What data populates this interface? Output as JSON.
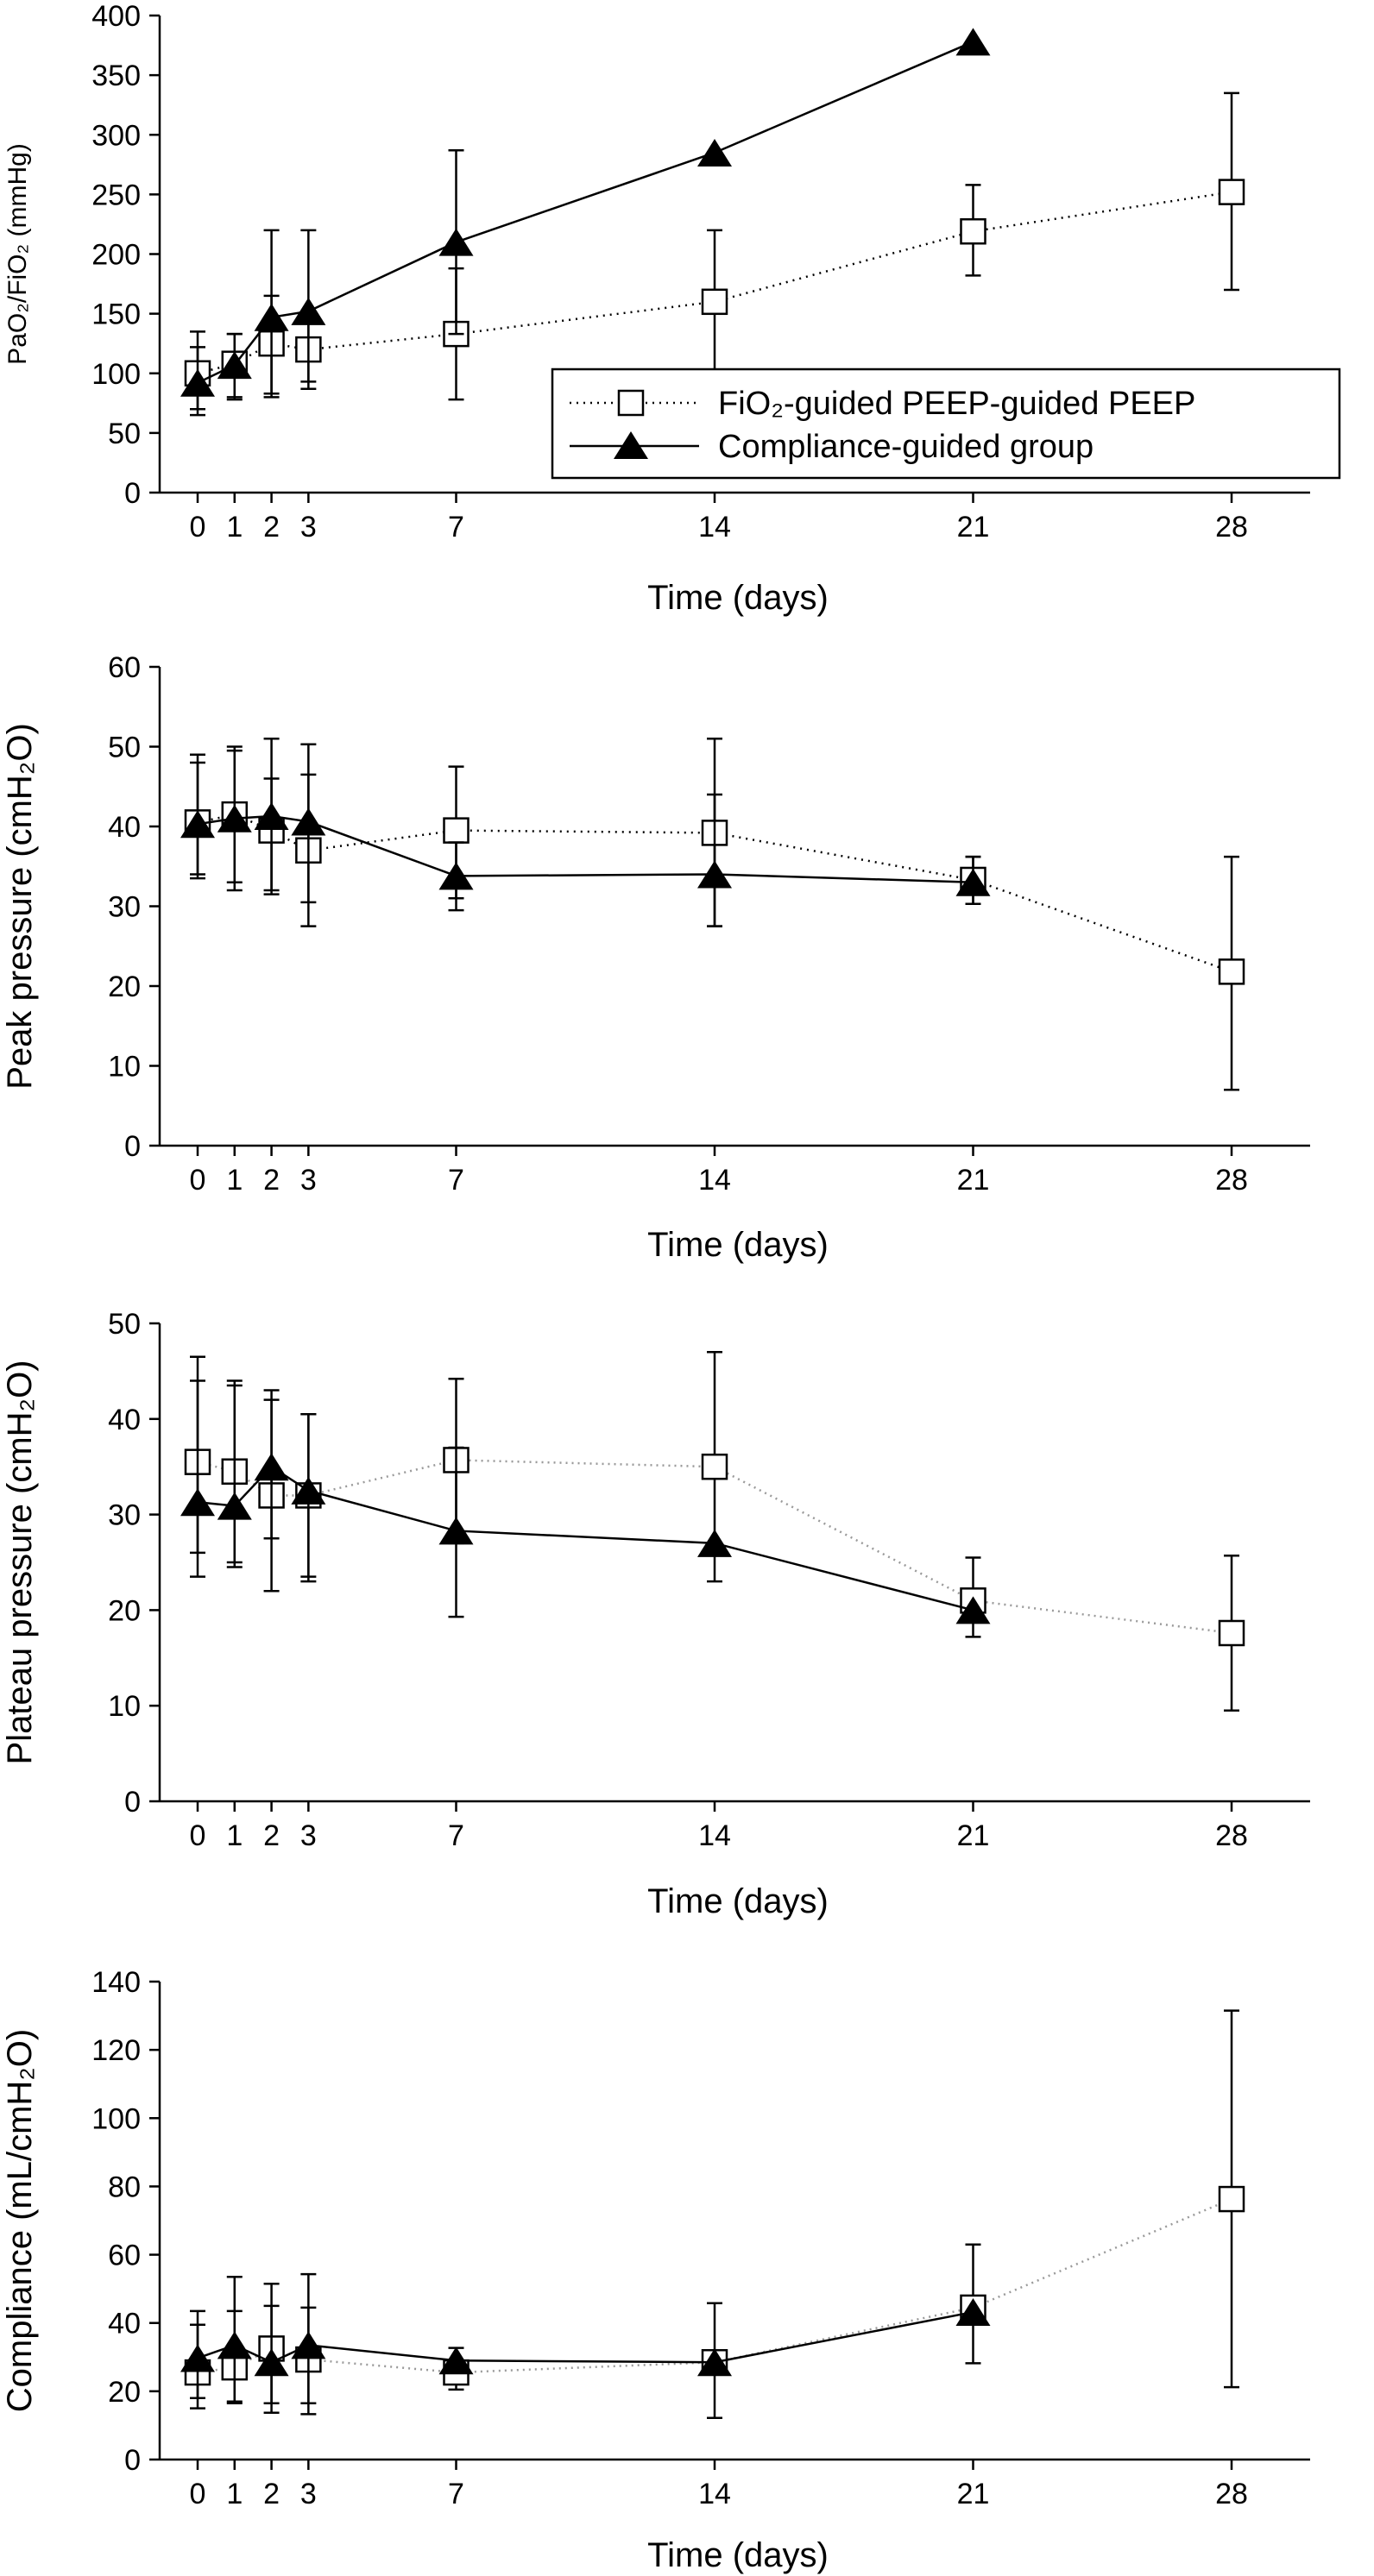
{
  "figure": {
    "legend": {
      "fio2_label": "FiO₂-guided PEEP-guided PEEP",
      "compliance_label": "Compliance-guided group"
    }
  },
  "colors": {
    "ink": "#000000",
    "open_marker": "#ffffff",
    "light_dotted": "#9a9a9a"
  },
  "chart_data": [
    {
      "type": "line",
      "ylabel": "PaO₂/FiO₂ (mmHg)",
      "xlabel": "Time (days)",
      "xticks": [
        0,
        1,
        2,
        3,
        7,
        14,
        21,
        28
      ],
      "xlim": [
        -1,
        30
      ],
      "ylim": [
        0,
        400
      ],
      "yticks": [
        0,
        50,
        100,
        150,
        200,
        250,
        300,
        350,
        400
      ],
      "grid": false,
      "legend": "bottom-right",
      "series": [
        {
          "name": "FiO₂-guided PEEP-guided PEEP",
          "marker": "open-square",
          "line": "dotted",
          "x": [
            0,
            1,
            2,
            3,
            7,
            14,
            21,
            28
          ],
          "y": [
            100,
            108,
            125,
            120,
            133,
            160,
            219,
            252
          ],
          "err_low": [
            70,
            80,
            83,
            93,
            78,
            100,
            182,
            170
          ],
          "err_high": [
            135,
            133,
            165,
            148,
            188,
            220,
            258,
            335
          ]
        },
        {
          "name": "Compliance-guided group",
          "marker": "filled-triangle",
          "line": "solid",
          "x": [
            0,
            1,
            2,
            3,
            7,
            14,
            21
          ],
          "y": [
            92,
            107,
            147,
            152,
            210,
            285,
            378
          ],
          "err_low": [
            65,
            78,
            80,
            87,
            133,
            null,
            null
          ],
          "err_high": [
            122,
            133,
            220,
            220,
            287,
            null,
            null
          ]
        }
      ]
    },
    {
      "type": "line",
      "ylabel": "Peak pressure (cmH₂O)",
      "xlabel": "Time (days)",
      "xticks": [
        0,
        1,
        2,
        3,
        7,
        14,
        21,
        28
      ],
      "xlim": [
        -1,
        30
      ],
      "ylim": [
        0,
        60
      ],
      "yticks": [
        0,
        10,
        20,
        30,
        40,
        50,
        60
      ],
      "grid": false,
      "series": [
        {
          "marker": "open-square",
          "line": "dotted",
          "x": [
            0,
            1,
            2,
            3,
            7,
            14,
            21,
            28
          ],
          "y": [
            40.5,
            41.5,
            39.5,
            37,
            39.5,
            39.2,
            33.3,
            21.8
          ],
          "err_low": [
            34,
            33,
            32,
            27.5,
            31,
            27.5,
            30.3,
            7
          ],
          "err_high": [
            48,
            49.5,
            46,
            46.5,
            47.5,
            51,
            36.2,
            36.2
          ]
        },
        {
          "marker": "filled-triangle",
          "line": "solid",
          "x": [
            0,
            1,
            2,
            3,
            7,
            14,
            21
          ],
          "y": [
            40.3,
            41,
            41.3,
            40.6,
            33.8,
            34,
            33
          ],
          "err_low": [
            33.5,
            32,
            31.5,
            30.5,
            29.5,
            27.5,
            30.3
          ],
          "err_high": [
            49,
            50,
            51,
            50.3,
            38,
            44,
            36.2
          ]
        }
      ]
    },
    {
      "type": "line",
      "ylabel": "Plateau pressure (cmH₂O)",
      "xlabel": "Time (days)",
      "xticks": [
        0,
        1,
        2,
        3,
        7,
        14,
        21,
        28
      ],
      "xlim": [
        -1,
        30
      ],
      "ylim": [
        0,
        50
      ],
      "yticks": [
        0,
        10,
        20,
        30,
        40,
        50
      ],
      "grid": false,
      "series": [
        {
          "marker": "open-square",
          "line": "dotted-light",
          "x": [
            0,
            1,
            2,
            3,
            7,
            14,
            21,
            28
          ],
          "y": [
            35.5,
            34.5,
            32,
            32,
            35.7,
            35,
            21,
            17.6
          ],
          "err_low": [
            26,
            24.5,
            22,
            23.5,
            27,
            23,
            17.2,
            9.5
          ],
          "err_high": [
            46.5,
            44,
            42,
            40.5,
            44.2,
            47,
            25.5,
            25.7
          ]
        },
        {
          "marker": "filled-triangle",
          "line": "solid",
          "x": [
            0,
            1,
            2,
            3,
            7,
            14,
            21
          ],
          "y": [
            31.3,
            30.9,
            35,
            32.5,
            28.3,
            27,
            20
          ],
          "err_low": [
            23.5,
            25,
            27.5,
            23,
            19.3,
            null,
            null
          ],
          "err_high": [
            44,
            43.5,
            43,
            40.5,
            37,
            null,
            null
          ]
        }
      ]
    },
    {
      "type": "line",
      "ylabel": "Compliance (mL/cmH₂O)",
      "xlabel": "Time (days)",
      "xticks": [
        0,
        1,
        2,
        3,
        7,
        14,
        21,
        28
      ],
      "xlim": [
        -1,
        30
      ],
      "ylim": [
        0,
        140
      ],
      "yticks": [
        0,
        20,
        40,
        60,
        80,
        100,
        120,
        140
      ],
      "grid": false,
      "series": [
        {
          "marker": "open-square",
          "line": "dotted-light",
          "x": [
            0,
            1,
            2,
            3,
            7,
            14,
            21,
            28
          ],
          "y": [
            25.5,
            27,
            32.5,
            29.3,
            25.5,
            28.5,
            44.5,
            76.3
          ],
          "err_low": [
            15,
            16.5,
            13.7,
            13.3,
            20.5,
            12.2,
            28.2,
            21.2
          ],
          "err_high": [
            39.5,
            43.5,
            51.5,
            44.5,
            32.7,
            45.8,
            63,
            131.5
          ]
        },
        {
          "marker": "filled-triangle",
          "line": "solid",
          "x": [
            0,
            1,
            2,
            3,
            7,
            14,
            21
          ],
          "y": [
            29.7,
            33.5,
            28.5,
            33.5,
            29,
            28.5,
            43.2
          ],
          "err_low": [
            18,
            17,
            16.5,
            16.5,
            null,
            null,
            null
          ],
          "err_high": [
            43.5,
            53.5,
            45,
            54.3,
            null,
            null,
            null
          ]
        }
      ]
    }
  ]
}
